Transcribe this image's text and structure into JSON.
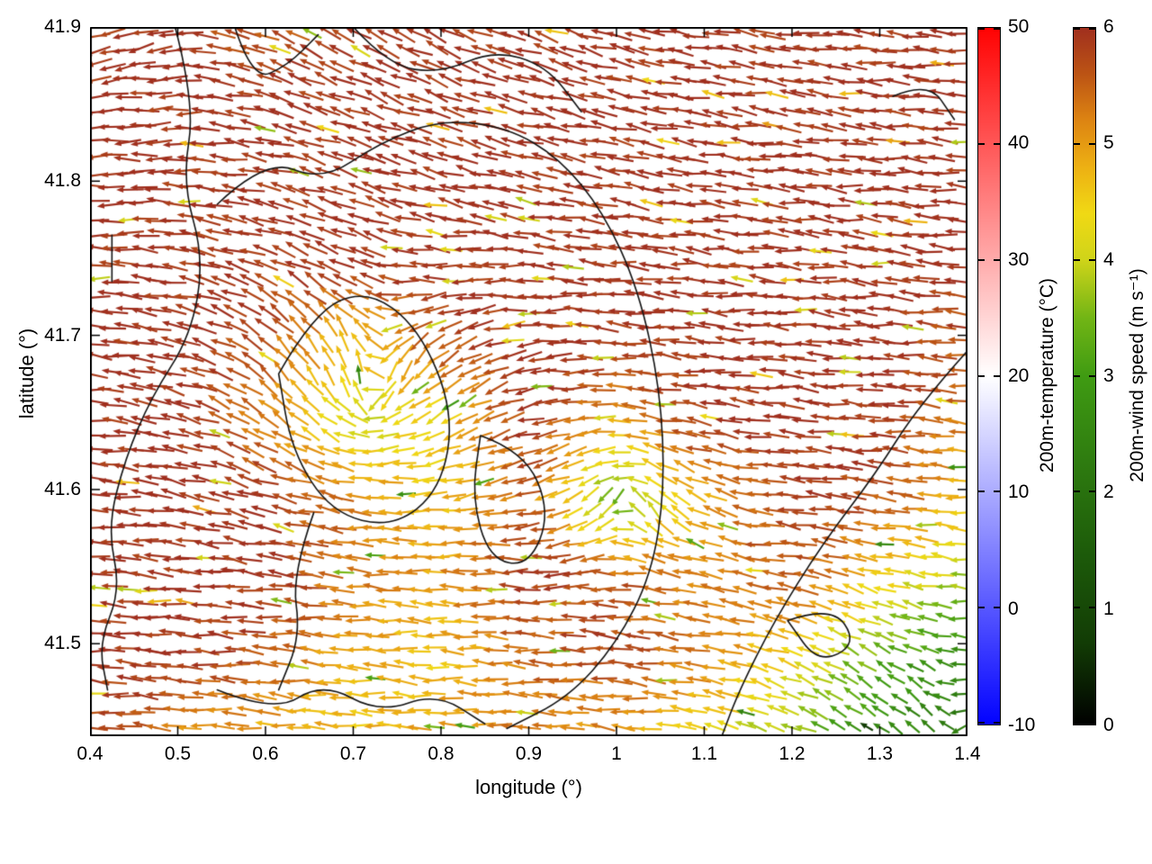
{
  "chart_data": {
    "type": "quiver",
    "title": "",
    "xlabel": "longitude (°)",
    "ylabel": "latitude (°)",
    "xlim": [
      0.4,
      1.4
    ],
    "ylim": [
      41.44,
      41.9
    ],
    "grid": false,
    "x_ticks": [
      {
        "v": 0.4,
        "label": "0.4"
      },
      {
        "v": 0.5,
        "label": "0.5"
      },
      {
        "v": 0.6,
        "label": "0.6"
      },
      {
        "v": 0.7,
        "label": "0.7"
      },
      {
        "v": 0.8,
        "label": "0.8"
      },
      {
        "v": 0.9,
        "label": "0.9"
      },
      {
        "v": 1.0,
        "label": "1"
      },
      {
        "v": 1.1,
        "label": "1.1"
      },
      {
        "v": 1.2,
        "label": "1.2"
      },
      {
        "v": 1.3,
        "label": "1.3"
      },
      {
        "v": 1.4,
        "label": "1.4"
      }
    ],
    "y_ticks": [
      {
        "v": 41.5,
        "label": "41.5"
      },
      {
        "v": 41.6,
        "label": "41.6"
      },
      {
        "v": 41.7,
        "label": "41.7"
      },
      {
        "v": 41.8,
        "label": "41.8"
      },
      {
        "v": 41.9,
        "label": "41.9"
      }
    ],
    "colorbars": [
      {
        "label": "200m-temperature (°C)",
        "min": -10,
        "max": 50,
        "ticks": [
          -10,
          0,
          10,
          20,
          30,
          40,
          50
        ],
        "stops": [
          {
            "v": -10,
            "c": "#0202ff"
          },
          {
            "v": 20,
            "c": "#ffffff"
          },
          {
            "v": 50,
            "c": "#ff0202"
          }
        ]
      },
      {
        "label": "200m-wind speed (m s⁻¹)",
        "min": 0,
        "max": 6,
        "ticks": [
          0,
          1,
          2,
          3,
          4,
          5,
          6
        ],
        "stops": [
          {
            "v": 0.0,
            "c": "#000000"
          },
          {
            "v": 0.7,
            "c": "#123c05"
          },
          {
            "v": 1.5,
            "c": "#1d5c0a"
          },
          {
            "v": 2.3,
            "c": "#2f7d10"
          },
          {
            "v": 3.0,
            "c": "#3f9b12"
          },
          {
            "v": 3.5,
            "c": "#71b515"
          },
          {
            "v": 4.0,
            "c": "#cfd419"
          },
          {
            "v": 4.4,
            "c": "#f0d914"
          },
          {
            "v": 4.8,
            "c": "#edb013"
          },
          {
            "v": 5.2,
            "c": "#dd8412"
          },
          {
            "v": 5.6,
            "c": "#bc5414"
          },
          {
            "v": 6.0,
            "c": "#a02f1e"
          }
        ]
      }
    ],
    "speed_grid": {
      "lon": [
        0.4,
        0.5,
        0.6,
        0.7,
        0.8,
        0.9,
        1.0,
        1.1,
        1.2,
        1.3,
        1.4
      ],
      "lat": [
        41.44,
        41.491,
        41.542,
        41.593,
        41.644,
        41.696,
        41.747,
        41.798,
        41.849,
        41.9
      ],
      "values": [
        [
          5.8,
          5.2,
          4.8,
          4.6,
          5.0,
          5.2,
          5.0,
          4.4,
          3.6,
          2.6,
          2.1
        ],
        [
          6.0,
          6.0,
          5.6,
          4.8,
          4.6,
          5.4,
          5.8,
          5.2,
          4.4,
          3.3,
          2.6
        ],
        [
          6.0,
          6.0,
          6.0,
          5.3,
          5.0,
          6.0,
          5.6,
          5.2,
          5.6,
          4.6,
          3.7
        ],
        [
          6.0,
          6.0,
          6.0,
          5.2,
          4.6,
          5.5,
          3.3,
          4.8,
          6.0,
          5.6,
          4.6
        ],
        [
          6.0,
          6.0,
          5.2,
          4.0,
          4.4,
          6.0,
          4.9,
          6.0,
          6.0,
          6.0,
          5.2
        ],
        [
          6.0,
          6.0,
          5.6,
          4.6,
          5.6,
          6.0,
          6.0,
          6.0,
          6.0,
          6.0,
          5.6
        ],
        [
          6.0,
          6.0,
          6.0,
          6.0,
          6.0,
          6.0,
          6.0,
          6.0,
          6.0,
          6.0,
          6.0
        ],
        [
          6.0,
          6.0,
          6.0,
          6.0,
          6.0,
          6.0,
          6.0,
          6.0,
          6.0,
          6.0,
          6.0
        ],
        [
          6.0,
          6.0,
          6.0,
          6.0,
          6.0,
          6.0,
          6.0,
          6.0,
          6.0,
          6.0,
          6.0
        ],
        [
          6.0,
          6.0,
          5.5,
          6.0,
          6.0,
          6.0,
          6.0,
          6.0,
          6.0,
          6.0,
          6.0
        ]
      ]
    },
    "flow": {
      "background_u": -1.0,
      "background_v": 0.08,
      "vortices": [
        {
          "x": 0.72,
          "y": 41.655,
          "radius": 0.17,
          "strength": -0.9
        },
        {
          "x": 1.01,
          "y": 41.6,
          "radius": 0.09,
          "strength": 0.8
        },
        {
          "x": 1.38,
          "y": 41.44,
          "radius": 0.22,
          "strength": -0.6
        },
        {
          "x": 0.55,
          "y": 41.98,
          "radius": 0.45,
          "strength": 0.5
        }
      ]
    },
    "contours": [
      [
        [
          0.497,
          41.9
        ],
        [
          0.52,
          41.85
        ],
        [
          0.505,
          41.8
        ],
        [
          0.53,
          41.75
        ],
        [
          0.515,
          41.7
        ],
        [
          0.47,
          41.66
        ],
        [
          0.44,
          41.62
        ],
        [
          0.42,
          41.575
        ],
        [
          0.435,
          41.535
        ],
        [
          0.41,
          41.5
        ],
        [
          0.42,
          41.47
        ]
      ],
      [
        [
          0.565,
          41.9
        ],
        [
          0.585,
          41.865
        ],
        [
          0.625,
          41.875
        ],
        [
          0.66,
          41.895
        ]
      ],
      [
        [
          0.545,
          41.785
        ],
        [
          0.6,
          41.815
        ],
        [
          0.665,
          41.8
        ],
        [
          0.73,
          41.825
        ],
        [
          0.8,
          41.84
        ],
        [
          0.875,
          41.835
        ],
        [
          0.935,
          41.815
        ],
        [
          0.985,
          41.78
        ],
        [
          1.025,
          41.73
        ],
        [
          1.05,
          41.665
        ],
        [
          1.055,
          41.6
        ],
        [
          1.04,
          41.545
        ],
        [
          1.0,
          41.5
        ],
        [
          0.945,
          41.465
        ],
        [
          0.875,
          41.445
        ]
      ],
      [
        [
          0.615,
          41.675
        ],
        [
          0.655,
          41.715
        ],
        [
          0.715,
          41.73
        ],
        [
          0.775,
          41.705
        ],
        [
          0.815,
          41.65
        ],
        [
          0.8,
          41.6
        ],
        [
          0.745,
          41.575
        ],
        [
          0.675,
          41.585
        ],
        [
          0.63,
          41.625
        ],
        [
          0.615,
          41.675
        ]
      ],
      [
        [
          0.845,
          41.635
        ],
        [
          0.895,
          41.625
        ],
        [
          0.925,
          41.585
        ],
        [
          0.9,
          41.55
        ],
        [
          0.855,
          41.555
        ],
        [
          0.835,
          41.595
        ],
        [
          0.845,
          41.635
        ]
      ],
      [
        [
          1.4,
          41.69
        ],
        [
          1.345,
          41.655
        ],
        [
          1.295,
          41.61
        ],
        [
          1.235,
          41.565
        ],
        [
          1.18,
          41.515
        ],
        [
          1.14,
          41.47
        ],
        [
          1.12,
          41.44
        ]
      ],
      [
        [
          1.195,
          41.515
        ],
        [
          1.245,
          41.525
        ],
        [
          1.275,
          41.5
        ],
        [
          1.23,
          41.487
        ],
        [
          1.195,
          41.515
        ]
      ],
      [
        [
          0.545,
          41.47
        ],
        [
          0.61,
          41.455
        ],
        [
          0.665,
          41.475
        ],
        [
          0.73,
          41.455
        ],
        [
          0.795,
          41.468
        ],
        [
          0.85,
          41.448
        ]
      ],
      [
        [
          1.315,
          41.855
        ],
        [
          1.355,
          41.865
        ],
        [
          1.385,
          41.84
        ]
      ],
      [
        [
          0.425,
          41.765
        ],
        [
          0.425,
          41.735
        ]
      ],
      [
        [
          0.7,
          41.9
        ],
        [
          0.74,
          41.875
        ],
        [
          0.8,
          41.87
        ],
        [
          0.86,
          41.885
        ],
        [
          0.92,
          41.875
        ],
        [
          0.96,
          41.845
        ]
      ],
      [
        [
          0.655,
          41.585
        ],
        [
          0.63,
          41.545
        ],
        [
          0.64,
          41.505
        ],
        [
          0.615,
          41.47
        ]
      ]
    ]
  }
}
